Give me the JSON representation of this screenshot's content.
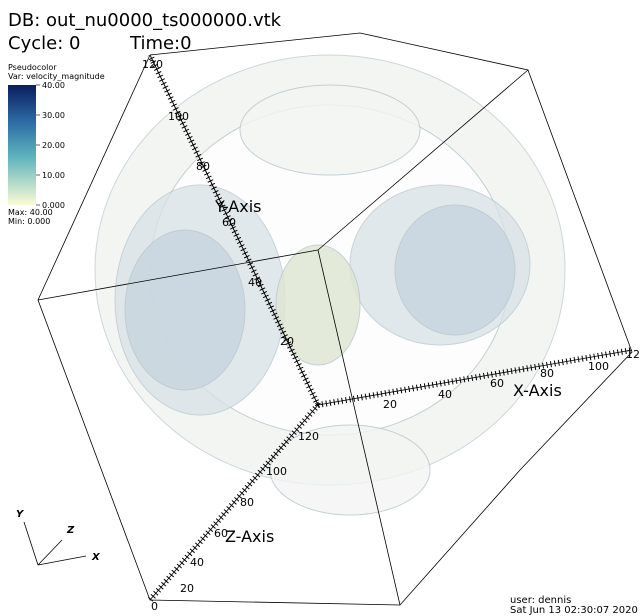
{
  "header": {
    "db": "DB: out_nu0000_ts000000.vtk",
    "cycle": "Cycle: 0",
    "time": "Time:0"
  },
  "legend": {
    "title": "Pseudocolor",
    "var": "Var: velocity_magnitude",
    "ticks": [
      "40.00",
      "30.00",
      "20.00",
      "10.00",
      "0.000"
    ],
    "max": "Max: 40.00",
    "min": "Min: 0.000"
  },
  "axes": {
    "y": {
      "title": "Y-Axis",
      "labels": [
        "20",
        "40",
        "60",
        "80",
        "100",
        "120"
      ]
    },
    "x": {
      "title": "X-Axis",
      "labels": [
        "20",
        "40",
        "60",
        "80",
        "100",
        "12"
      ]
    },
    "z": {
      "title": "Z-Axis",
      "labels": [
        "0",
        "20",
        "40",
        "60",
        "80",
        "100",
        "120"
      ]
    }
  },
  "triad": {
    "x": "X",
    "y": "Y",
    "z": "Z"
  },
  "footer": {
    "user": "user: dennis",
    "date": "Sat Jun 13 02:30:07 2020"
  }
}
